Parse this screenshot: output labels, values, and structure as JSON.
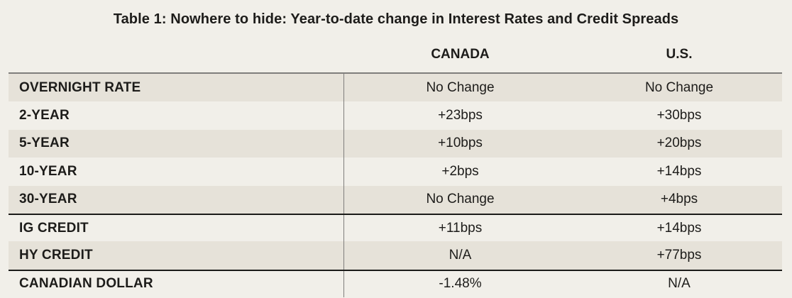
{
  "title": "Table 1: Nowhere to hide: Year-to-date change in Interest Rates and Credit Spreads",
  "table": {
    "column_headers": [
      "CANADA",
      "U.S."
    ],
    "rows": [
      {
        "label": "OVERNIGHT RATE",
        "canada": "No Change",
        "us": "No Change"
      },
      {
        "label": "2-YEAR",
        "canada": "+23bps",
        "us": "+30bps"
      },
      {
        "label": "5-YEAR",
        "canada": "+10bps",
        "us": "+20bps"
      },
      {
        "label": "10-YEAR",
        "canada": "+2bps",
        "us": "+14bps"
      },
      {
        "label": "30-YEAR",
        "canada": "No Change",
        "us": "+4bps"
      },
      {
        "label": "IG CREDIT",
        "canada": "+11bps",
        "us": "+14bps"
      },
      {
        "label": "HY CREDIT",
        "canada": "N/A",
        "us": "+77bps"
      },
      {
        "label": "CANADIAN DOLLAR",
        "canada": "-1.48%",
        "us": "N/A"
      }
    ]
  },
  "colors": {
    "page_background": "#f1efe9",
    "shaded_row": "#e6e2d9",
    "text": "#1d1c1a",
    "gray_border": "#7f7e7c",
    "dark_separator": "#1b1b19"
  }
}
